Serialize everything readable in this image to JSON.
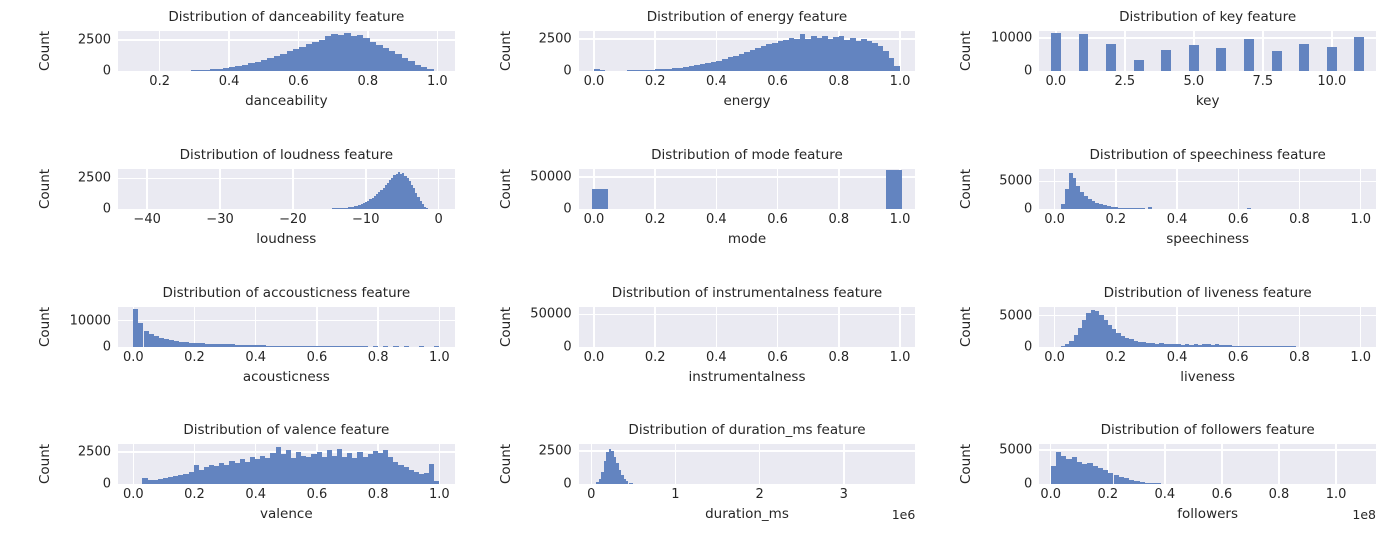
{
  "figure": {
    "background": "#ffffff",
    "axes_background": "#eaeaf2",
    "grid_color": "#ffffff",
    "bar_color": "#6384c0",
    "text_color": "#262626",
    "rows": 4,
    "cols": 3,
    "grid": true,
    "legend": false
  },
  "chart_data": [
    {
      "type": "bar",
      "title": "Distribution of danceability feature",
      "xlabel": "danceability",
      "ylabel": "Count",
      "ymax": 3200,
      "ytick_vals": [
        0,
        2500
      ],
      "ytick_labels": [
        "0",
        "2500"
      ],
      "xlim": [
        0.08,
        1.05
      ],
      "xtick_vals": [
        0.2,
        0.4,
        0.6,
        0.8,
        1.0
      ],
      "xtick_labels": [
        "0.2",
        "0.4",
        "0.6",
        "0.8",
        "1.0"
      ],
      "hist": {
        "start": 0.16,
        "end": 0.99,
        "values": [
          12,
          8,
          15,
          10,
          20,
          28,
          38,
          55,
          75,
          105,
          145,
          195,
          255,
          330,
          420,
          515,
          630,
          760,
          900,
          1050,
          1210,
          1390,
          1570,
          1760,
          1950,
          2140,
          2330,
          2520,
          2780,
          2950,
          2890,
          3010,
          2840,
          2900,
          2650,
          2330,
          2110,
          1860,
          1600,
          1340,
          1050,
          770,
          510,
          290,
          130
        ]
      }
    },
    {
      "type": "bar",
      "title": "Distribution of energy feature",
      "xlabel": "energy",
      "ylabel": "Count",
      "ymax": 3100,
      "ytick_vals": [
        0,
        2500
      ],
      "ytick_labels": [
        "0",
        "2500"
      ],
      "xlim": [
        -0.05,
        1.05
      ],
      "xtick_vals": [
        0.0,
        0.2,
        0.4,
        0.6,
        0.8,
        1.0
      ],
      "xtick_labels": [
        "0.0",
        "0.2",
        "0.4",
        "0.6",
        "0.8",
        "1.0"
      ],
      "hist": {
        "start": 0.0,
        "end": 1.0,
        "values": [
          190,
          50,
          25,
          20,
          25,
          35,
          45,
          55,
          65,
          80,
          100,
          120,
          145,
          175,
          210,
          250,
          300,
          360,
          430,
          510,
          600,
          700,
          810,
          930,
          1060,
          1200,
          1340,
          1490,
          1640,
          1790,
          1930,
          2070,
          2200,
          2320,
          2430,
          2560,
          2470,
          2850,
          2500,
          2700,
          2540,
          2680,
          2460,
          2600,
          2750,
          2400,
          2590,
          2330,
          2460,
          2290,
          2160,
          1960,
          1550,
          1000,
          350
        ]
      }
    },
    {
      "type": "bar",
      "title": "Distribution of key feature",
      "xlabel": "key",
      "ylabel": "Count",
      "ymax": 12200,
      "ytick_vals": [
        0,
        10000
      ],
      "ytick_labels": [
        "0",
        "10000"
      ],
      "xlim": [
        -0.6,
        11.6
      ],
      "xtick_vals": [
        0.0,
        2.5,
        5.0,
        7.5,
        10.0
      ],
      "xtick_labels": [
        "0.0",
        "2.5",
        "5.0",
        "7.5",
        "10.0"
      ],
      "discrete": {
        "centers": [
          0,
          1,
          2,
          3,
          4,
          5,
          6,
          7,
          8,
          9,
          10,
          11
        ],
        "width": 0.36,
        "values": [
          11500,
          11200,
          8200,
          3300,
          6300,
          7800,
          7000,
          9800,
          6100,
          8300,
          7200,
          10500
        ]
      }
    },
    {
      "type": "bar",
      "title": "Distribution of loudness feature",
      "xlabel": "loudness",
      "ylabel": "Count",
      "ymax": 3300,
      "ytick_vals": [
        0,
        2500
      ],
      "ytick_labels": [
        "0",
        "2500"
      ],
      "xlim": [
        -44,
        2.2
      ],
      "xtick_vals": [
        -40,
        -30,
        -20,
        -10,
        0
      ],
      "xtick_labels": [
        "−40",
        "−30",
        "−20",
        "−10",
        "0"
      ],
      "hist": {
        "start": -17,
        "end": -1.4,
        "values": [
          8,
          6,
          10,
          8,
          12,
          10,
          15,
          18,
          22,
          28,
          36,
          46,
          58,
          72,
          88,
          108,
          135,
          165,
          205,
          255,
          315,
          385,
          465,
          555,
          655,
          775,
          905,
          1045,
          1195,
          1365,
          1545,
          1735,
          1935,
          2145,
          2345,
          2545,
          2745,
          2895,
          3010,
          2860,
          2950,
          2700,
          2500,
          2290,
          2000,
          1690,
          1340,
          990,
          640,
          370,
          170,
          55
        ]
      }
    },
    {
      "type": "bar",
      "title": "Distribution of mode feature",
      "xlabel": "mode",
      "ylabel": "Count",
      "ymax": 63000,
      "ytick_vals": [
        0,
        50000
      ],
      "ytick_labels": [
        "0",
        "50000"
      ],
      "xlim": [
        -0.05,
        1.05
      ],
      "xtick_vals": [
        0.0,
        0.2,
        0.4,
        0.6,
        0.8,
        1.0
      ],
      "xtick_labels": [
        "0.0",
        "0.2",
        "0.4",
        "0.6",
        "0.8",
        "1.0"
      ],
      "discrete": {
        "centers": [
          0.02,
          0.98
        ],
        "width": 0.05,
        "values": [
          30500,
          61000
        ]
      }
    },
    {
      "type": "bar",
      "title": "Distribution of speechiness feature",
      "xlabel": "speechiness",
      "ylabel": "Count",
      "ymax": 7300,
      "ytick_vals": [
        0,
        5000
      ],
      "ytick_labels": [
        "0",
        "5000"
      ],
      "xlim": [
        -0.05,
        1.05
      ],
      "xtick_vals": [
        0.0,
        0.2,
        0.4,
        0.6,
        0.8,
        1.0
      ],
      "xtick_labels": [
        "0.0",
        "0.2",
        "0.4",
        "0.6",
        "0.8",
        "1.0"
      ],
      "hist": {
        "start": 0.022,
        "end": 0.64,
        "values": [
          900,
          3600,
          6600,
          5700,
          4100,
          3000,
          2300,
          1750,
          1350,
          1000,
          780,
          600,
          470,
          370,
          290,
          230,
          180,
          140,
          110,
          90,
          70,
          55,
          45,
          250,
          30,
          25,
          20,
          18,
          15,
          12,
          10,
          0,
          8,
          0,
          7,
          0,
          6,
          0,
          5,
          0,
          0,
          4,
          0,
          0,
          3,
          0,
          0,
          0,
          0,
          60
        ]
      }
    },
    {
      "type": "bar",
      "title": "Distribution of accousticness feature",
      "xlabel": "acousticness",
      "ylabel": "Count",
      "ymax": 15500,
      "ytick_vals": [
        0,
        10000
      ],
      "ytick_labels": [
        "0",
        "10000"
      ],
      "xlim": [
        -0.05,
        1.05
      ],
      "xtick_vals": [
        0.0,
        0.2,
        0.4,
        0.6,
        0.8,
        1.0
      ],
      "xtick_labels": [
        "0.0",
        "0.2",
        "0.4",
        "0.6",
        "0.8",
        "1.0"
      ],
      "hist": {
        "start": 0.0,
        "end": 1.0,
        "values": [
          14500,
          9000,
          6200,
          4800,
          3900,
          3300,
          2800,
          2450,
          2100,
          1850,
          1650,
          1500,
          1350,
          1250,
          1150,
          1050,
          980,
          920,
          870,
          820,
          500,
          620,
          560,
          510,
          470,
          430,
          290,
          270,
          250,
          230,
          210,
          195,
          180,
          170,
          160,
          150,
          140,
          130,
          120,
          110,
          100,
          95,
          90,
          85,
          80,
          75,
          0,
          120,
          0,
          110,
          0,
          100,
          0,
          90,
          0,
          0,
          80,
          0,
          0,
          160
        ]
      }
    },
    {
      "type": "bar",
      "title": "Distribution of instrumentalness feature",
      "xlabel": "instrumentalness",
      "ylabel": "Count",
      "ymax": 62000,
      "ytick_vals": [
        0,
        50000
      ],
      "ytick_labels": [
        "0",
        "50000"
      ],
      "xlim": [
        -0.05,
        1.05
      ],
      "xtick_vals": [
        0.0,
        0.2,
        0.4,
        0.6,
        0.8,
        1.0
      ],
      "xtick_labels": [
        "0.0",
        "0.2",
        "0.4",
        "0.6",
        "0.8",
        "1.0"
      ],
      "hist": {
        "start": 0.0,
        "end": 1.0,
        "values": []
      }
    },
    {
      "type": "bar",
      "title": "Distribution of liveness feature",
      "xlabel": "liveness",
      "ylabel": "Count",
      "ymax": 6500,
      "ytick_vals": [
        0,
        5000
      ],
      "ytick_labels": [
        "0",
        "5000"
      ],
      "xlim": [
        -0.05,
        1.05
      ],
      "xtick_vals": [
        0.0,
        0.2,
        0.4,
        0.6,
        0.8,
        1.0
      ],
      "xtick_labels": [
        "0.0",
        "0.2",
        "0.4",
        "0.6",
        "0.8",
        "1.0"
      ],
      "hist": {
        "start": 0.02,
        "end": 0.79,
        "values": [
          150,
          400,
          900,
          1800,
          3000,
          4300,
          5400,
          5900,
          5700,
          5100,
          4300,
          3500,
          2800,
          2200,
          1750,
          1400,
          1150,
          950,
          800,
          680,
          580,
          500,
          440,
          500,
          390,
          360,
          410,
          340,
          320,
          390,
          300,
          370,
          290,
          410,
          340,
          290,
          370,
          290,
          240,
          190,
          140,
          110,
          90,
          70,
          50,
          40,
          30,
          22,
          16,
          12,
          8,
          6,
          5,
          4,
          3
        ]
      }
    },
    {
      "type": "bar",
      "title": "Distribution of valence feature",
      "xlabel": "valence",
      "ylabel": "Count",
      "ymax": 3100,
      "ytick_vals": [
        0,
        2500
      ],
      "ytick_labels": [
        "0",
        "2500"
      ],
      "xlim": [
        -0.05,
        1.05
      ],
      "xtick_vals": [
        0.0,
        0.2,
        0.4,
        0.6,
        0.8,
        1.0
      ],
      "xtick_labels": [
        "0.0",
        "0.2",
        "0.4",
        "0.6",
        "0.8",
        "1.0"
      ],
      "hist": {
        "start": 0.03,
        "end": 1.0,
        "values": [
          520,
          300,
          360,
          420,
          470,
          560,
          620,
          710,
          760,
          920,
          1460,
          1120,
          1320,
          1520,
          1420,
          1620,
          1500,
          1820,
          1620,
          1920,
          1720,
          2120,
          1920,
          2220,
          2020,
          2420,
          2920,
          2320,
          2620,
          2020,
          2520,
          2220,
          2120,
          2320,
          2520,
          2120,
          2620,
          2220,
          2720,
          2120,
          2420,
          2020,
          2520,
          2120,
          2320,
          2560,
          2420,
          2660,
          2120,
          1720,
          1520,
          1320,
          1120,
          920,
          820,
          860,
          1580,
          260
        ]
      }
    },
    {
      "type": "bar",
      "title": "Distribution of duration_ms feature",
      "xlabel": "duration_ms",
      "ylabel": "Count",
      "ymax": 3000,
      "ytick_vals": [
        0,
        2500
      ],
      "ytick_labels": [
        "0",
        "2500"
      ],
      "xlim": [
        -150000,
        3850000
      ],
      "xtick_vals": [
        0,
        1000000,
        2000000,
        3000000
      ],
      "xtick_labels": [
        "0",
        "1",
        "2",
        "3"
      ],
      "offset_text": "1e6",
      "hist": {
        "start": 30000,
        "end": 560000,
        "values": [
          40,
          140,
          420,
          950,
          1750,
          2450,
          2640,
          2480,
          2080,
          1580,
          1080,
          680,
          400,
          240,
          130,
          70,
          35,
          15
        ]
      }
    },
    {
      "type": "bar",
      "title": "Distribution of followers feature",
      "xlabel": "followers",
      "ylabel": "Count",
      "ymax": 5800,
      "ytick_vals": [
        0,
        5000
      ],
      "ytick_labels": [
        "0",
        "5000"
      ],
      "xlim": [
        -4000000,
        114000000
      ],
      "xtick_vals": [
        0,
        20000000,
        40000000,
        60000000,
        80000000,
        100000000
      ],
      "xtick_labels": [
        "0.0",
        "0.2",
        "0.4",
        "0.6",
        "0.8",
        "1.0"
      ],
      "offset_text": "1e8",
      "hist": {
        "start": 0,
        "end": 110000000,
        "values": [
          2600,
          4700,
          4100,
          3700,
          3900,
          3300,
          2900,
          3100,
          2600,
          2300,
          2000,
          1700,
          1400,
          1100,
          850,
          620,
          440,
          310,
          230,
          170,
          130,
          100,
          80,
          60,
          0,
          50,
          0,
          45,
          0,
          40,
          35,
          0,
          30,
          0,
          28,
          0,
          25,
          0,
          22,
          0,
          20,
          0,
          0,
          18,
          0,
          0,
          15,
          0,
          0,
          12,
          0,
          0,
          0,
          10,
          0,
          0,
          0,
          0,
          0,
          9
        ]
      }
    }
  ]
}
